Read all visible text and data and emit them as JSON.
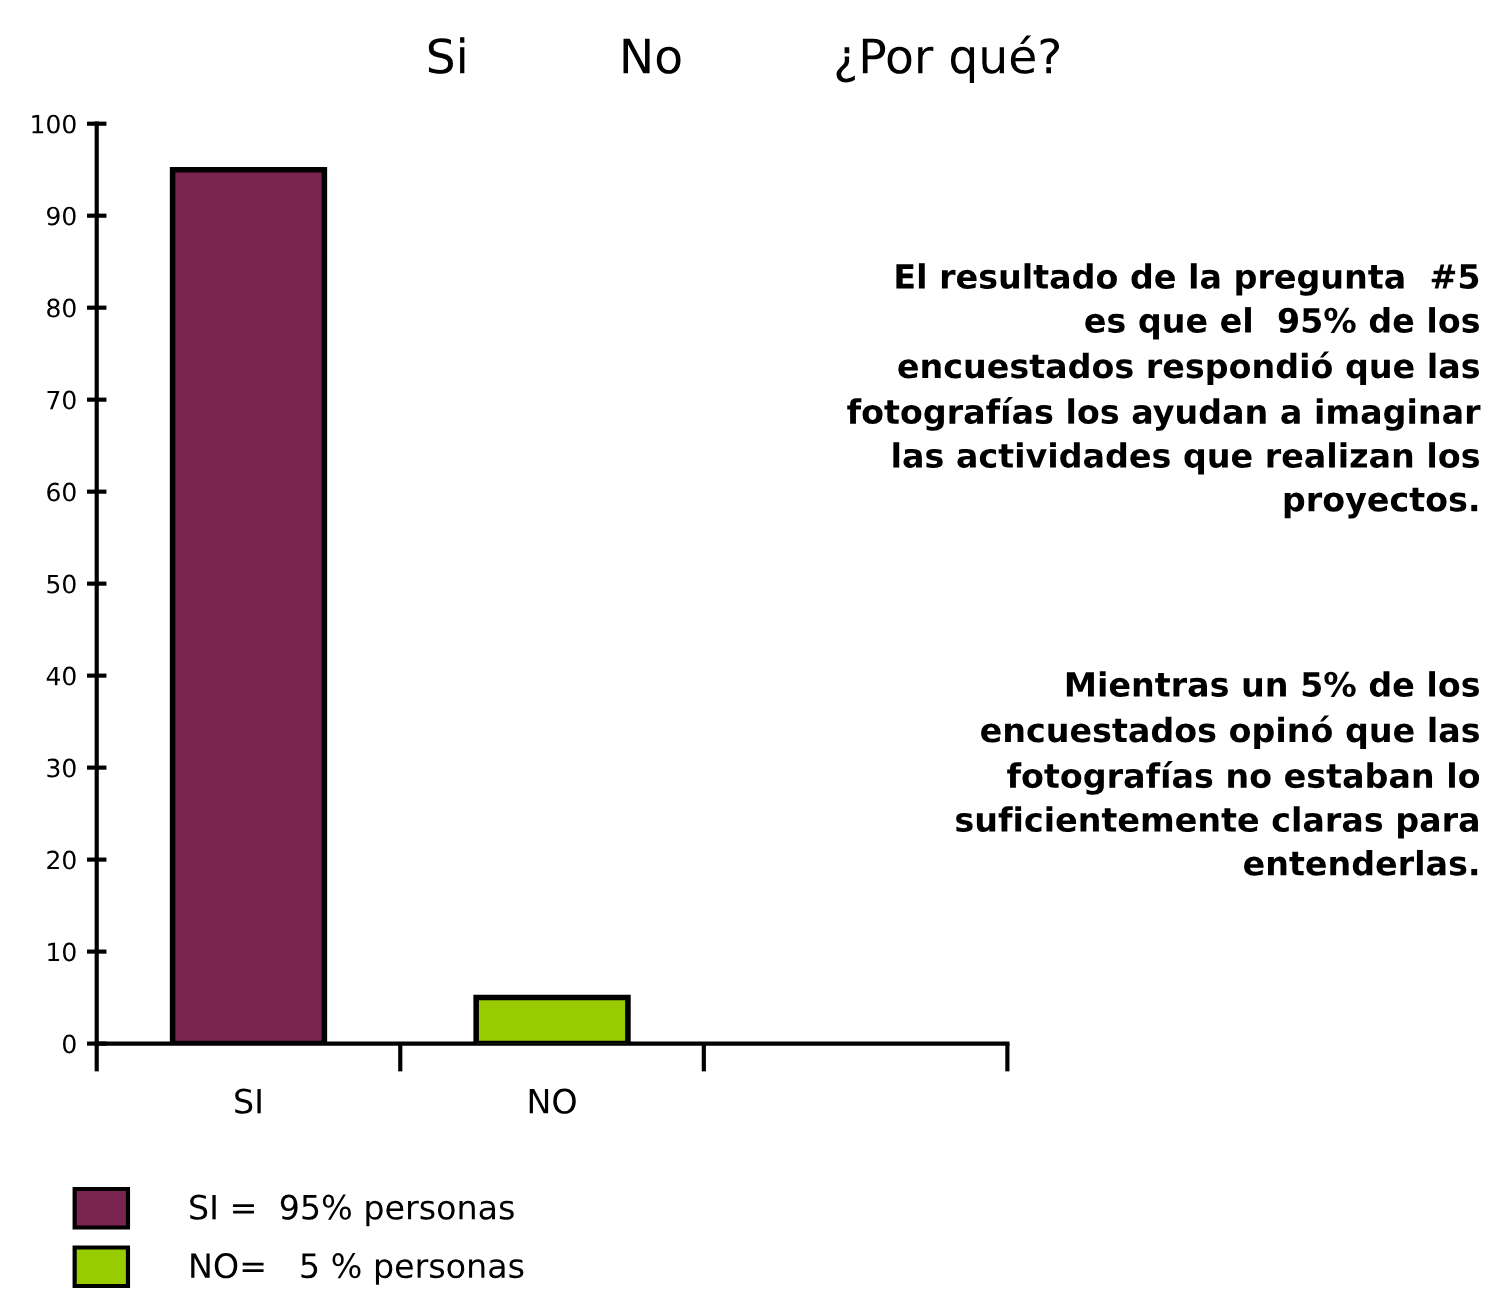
{
  "chart_data": {
    "type": "bar",
    "title": "Si          No          ¿Por qué?",
    "categories": [
      "SI",
      "NO",
      null
    ],
    "series": [
      {
        "name": "SI =  95% personas",
        "color": "#7a2450",
        "values": [
          95,
          null,
          null
        ]
      },
      {
        "name": "NO=   5 % personas",
        "color": "#99cc00",
        "values": [
          null,
          5,
          null
        ]
      }
    ],
    "ylim": [
      0,
      100
    ],
    "yticks": [
      0,
      10,
      20,
      30,
      40,
      50,
      60,
      70,
      80,
      90,
      100
    ],
    "grid": false,
    "legend": "bottom left",
    "annotations": [
      "El resultado de la pregunta  #5\nes que el  95% de los\nencuestados respondió que las\nfotografías los ayudan a imaginar\nlas actividades que realizan los\nproyectos.",
      "Mientras un 5% de los\nencuestados opinó que las\nfotografías no estaban lo\nsuficientemente claras para\nentenderlas."
    ]
  }
}
